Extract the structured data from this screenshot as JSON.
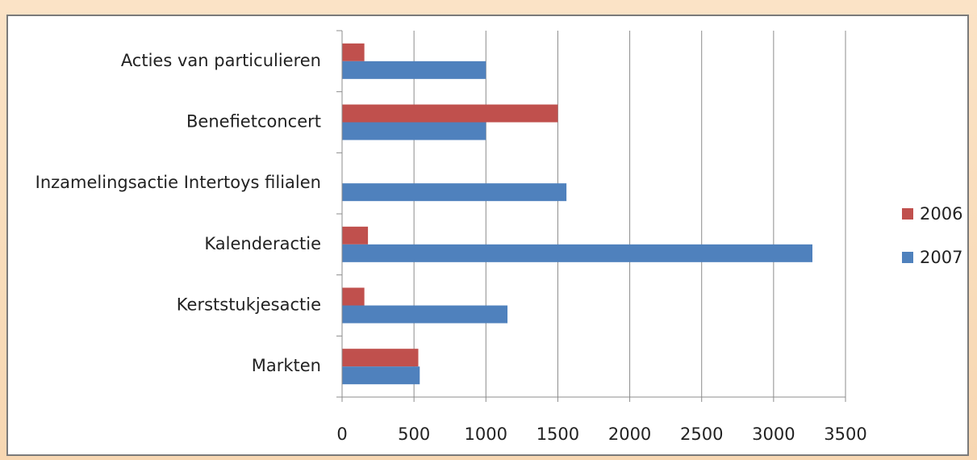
{
  "chart_data": {
    "type": "bar",
    "orientation": "horizontal",
    "categories": [
      "Acties van particulieren",
      "Benefietconcert",
      "Inzamelingsactie Intertoys  filialen",
      "Kalenderactie",
      "Kerststukjesactie",
      "Markten"
    ],
    "series": [
      {
        "name": "2006",
        "color": "#c0504d",
        "values": [
          155,
          1500,
          0,
          180,
          155,
          530
        ]
      },
      {
        "name": "2007",
        "color": "#4f81bd",
        "values": [
          1000,
          1000,
          1560,
          3270,
          1150,
          540
        ]
      }
    ],
    "xlim": [
      0,
      3500
    ],
    "xticks": [
      "0",
      "500",
      "1000",
      "1500",
      "2000",
      "2500",
      "3000",
      "3500"
    ],
    "grid": "vertical",
    "legend": "right"
  }
}
